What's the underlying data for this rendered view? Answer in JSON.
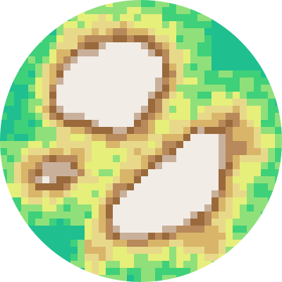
{
  "minimap": {
    "shape": "circle",
    "style": "pixelated-heightmap",
    "palette": {
      "deep_water": "#1fbf8f",
      "shallow": "#3fd07a",
      "grass": "#8fe07a",
      "lowland": "#e6ef7a",
      "sand": "#e8d98a",
      "hill": "#d9b56a",
      "mountain": "#b8895a",
      "rock": "#9a6a3c",
      "high_rock": "#c9b09a",
      "snow": "#f2ece6",
      "background": "#ffffff"
    }
  }
}
